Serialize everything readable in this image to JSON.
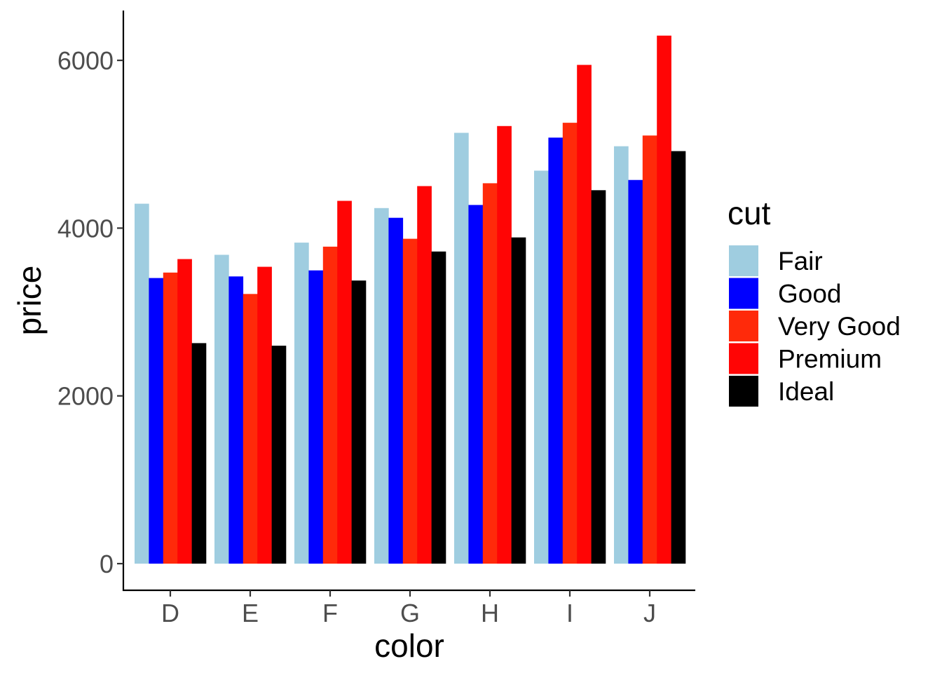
{
  "chart_data": {
    "type": "bar",
    "title": "",
    "xlabel": "color",
    "ylabel": "price",
    "categories": [
      "D",
      "E",
      "F",
      "G",
      "H",
      "I",
      "J"
    ],
    "ylim": [
      0,
      6300
    ],
    "yticks": [
      0,
      2000,
      4000,
      6000
    ],
    "ytick_labels": [
      "0",
      "2000",
      "4000",
      "6000"
    ],
    "grid": false,
    "legend": {
      "title": "cut",
      "position": "right"
    },
    "series": [
      {
        "name": "Fair",
        "color": "#9fcde0",
        "values": [
          4291,
          3682,
          3827,
          4239,
          5136,
          4685,
          4976
        ]
      },
      {
        "name": "Good",
        "color": "#0000ff",
        "values": [
          3405,
          3424,
          3496,
          4123,
          4276,
          5079,
          4574
        ]
      },
      {
        "name": "Very Good",
        "color": "#ff2a0a",
        "values": [
          3470,
          3215,
          3779,
          3873,
          4535,
          5256,
          5104
        ]
      },
      {
        "name": "Premium",
        "color": "#ff0505",
        "values": [
          3631,
          3539,
          4325,
          4501,
          5217,
          5946,
          6295
        ]
      },
      {
        "name": "Ideal",
        "color": "#000000",
        "values": [
          2629,
          2598,
          3375,
          3721,
          3889,
          4452,
          4918
        ]
      }
    ]
  }
}
